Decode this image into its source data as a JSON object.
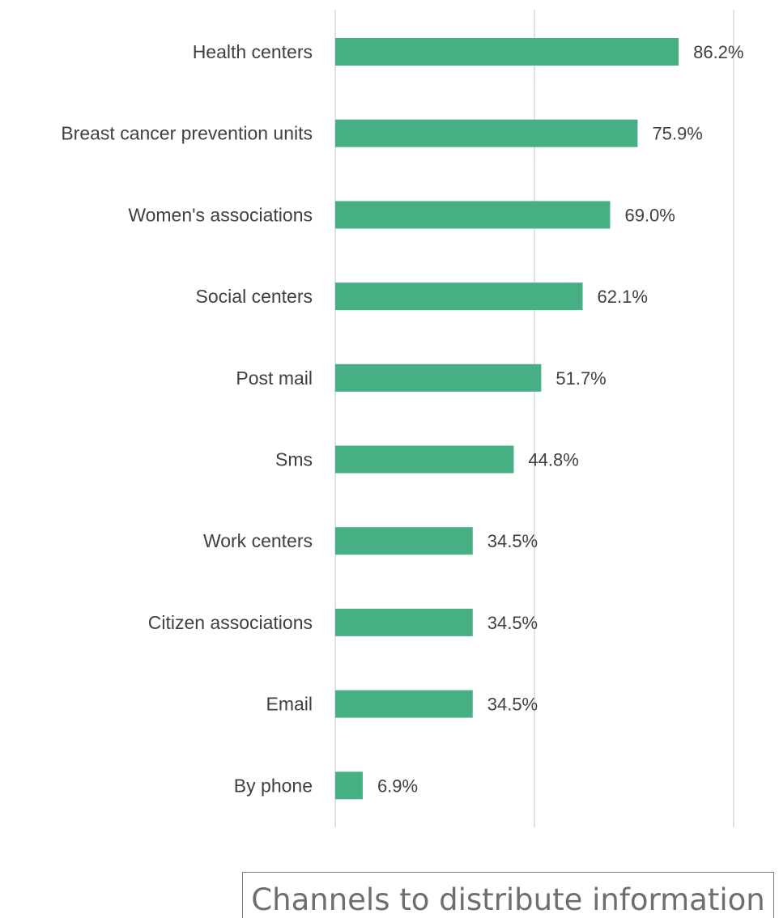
{
  "chart_data": {
    "type": "bar",
    "orientation": "horizontal",
    "categories": [
      "Health centers",
      "Breast cancer prevention units",
      "Women's associations",
      "Social centers",
      "Post mail",
      "Sms",
      "Work centers",
      "Citizen associations",
      "Email",
      "By phone"
    ],
    "values": [
      86.2,
      75.9,
      69.0,
      62.1,
      51.7,
      44.8,
      34.5,
      34.5,
      34.5,
      6.9
    ],
    "value_labels": [
      "86.2%",
      "75.9%",
      "69.0%",
      "62.1%",
      "51.7%",
      "44.8%",
      "34.5%",
      "34.5%",
      "34.5%",
      "6.9%"
    ],
    "xlim": [
      0,
      100
    ],
    "gridlines_at": [
      0,
      50,
      100
    ],
    "grid": true,
    "bar_color": "#46b084",
    "legend": {
      "label": "Channels to distribute information",
      "placement": "bottom"
    }
  }
}
